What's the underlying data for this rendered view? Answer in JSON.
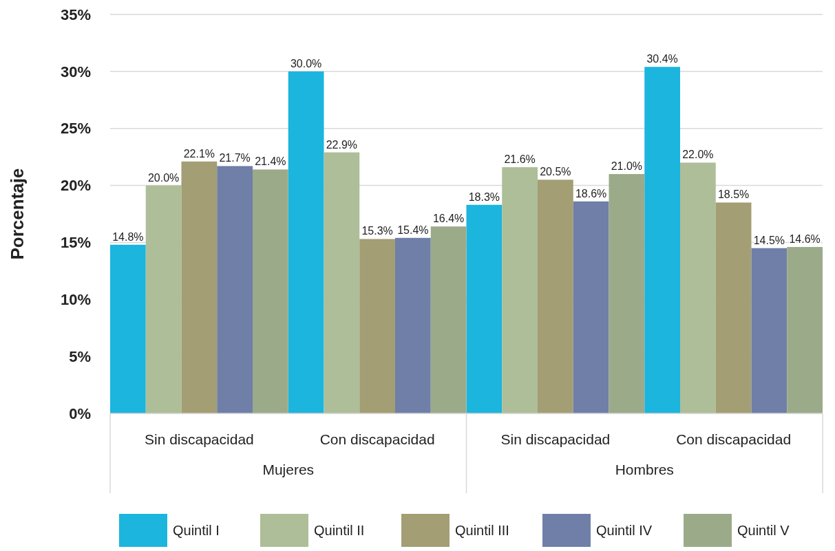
{
  "chart_data": {
    "type": "bar",
    "ylabel": "Porcentaje",
    "categories": [
      "Sin discapacidad",
      "Con discapacidad",
      "Sin discapacidad",
      "Con discapacidad"
    ],
    "annotations": [
      "Mujeres",
      "Hombres"
    ],
    "series": [
      {
        "name": "Quintil I",
        "color": "#1bb5de",
        "values": [
          14.8,
          30.0,
          18.3,
          30.4
        ],
        "value_labels": [
          "14.8%",
          "30.0%",
          "18.3%",
          "30.4%"
        ]
      },
      {
        "name": "Quintil II",
        "color": "#adbe98",
        "values": [
          20.0,
          22.9,
          21.6,
          22.0
        ],
        "value_labels": [
          "20.0%",
          "22.9%",
          "21.6%",
          "22.0%"
        ]
      },
      {
        "name": "Quintil III",
        "color": "#a39e73",
        "values": [
          22.1,
          15.3,
          20.5,
          18.5
        ],
        "value_labels": [
          "22.1%",
          "15.3%",
          "20.5%",
          "18.5%"
        ]
      },
      {
        "name": "Quintil IV",
        "color": "#6f7fa8",
        "values": [
          21.7,
          15.4,
          18.6,
          14.5
        ],
        "value_labels": [
          "21.7%",
          "15.4%",
          "18.6%",
          "14.5%"
        ]
      },
      {
        "name": "Quintil V",
        "color": "#9bab8a",
        "values": [
          21.4,
          16.4,
          21.0,
          14.6
        ],
        "value_labels": [
          "21.4%",
          "16.4%",
          "21.0%",
          "14.6%"
        ]
      }
    ],
    "ylim": [
      0,
      35
    ],
    "yticks": [
      {
        "value": 0,
        "label": "0%"
      },
      {
        "value": 5,
        "label": "5%"
      },
      {
        "value": 10,
        "label": "10%"
      },
      {
        "value": 15,
        "label": "15%"
      },
      {
        "value": 20,
        "label": "20%"
      },
      {
        "value": 25,
        "label": "25%"
      },
      {
        "value": 30,
        "label": "30%"
      },
      {
        "value": 35,
        "label": "35%"
      }
    ],
    "grid": "y",
    "legend": "bottom"
  }
}
